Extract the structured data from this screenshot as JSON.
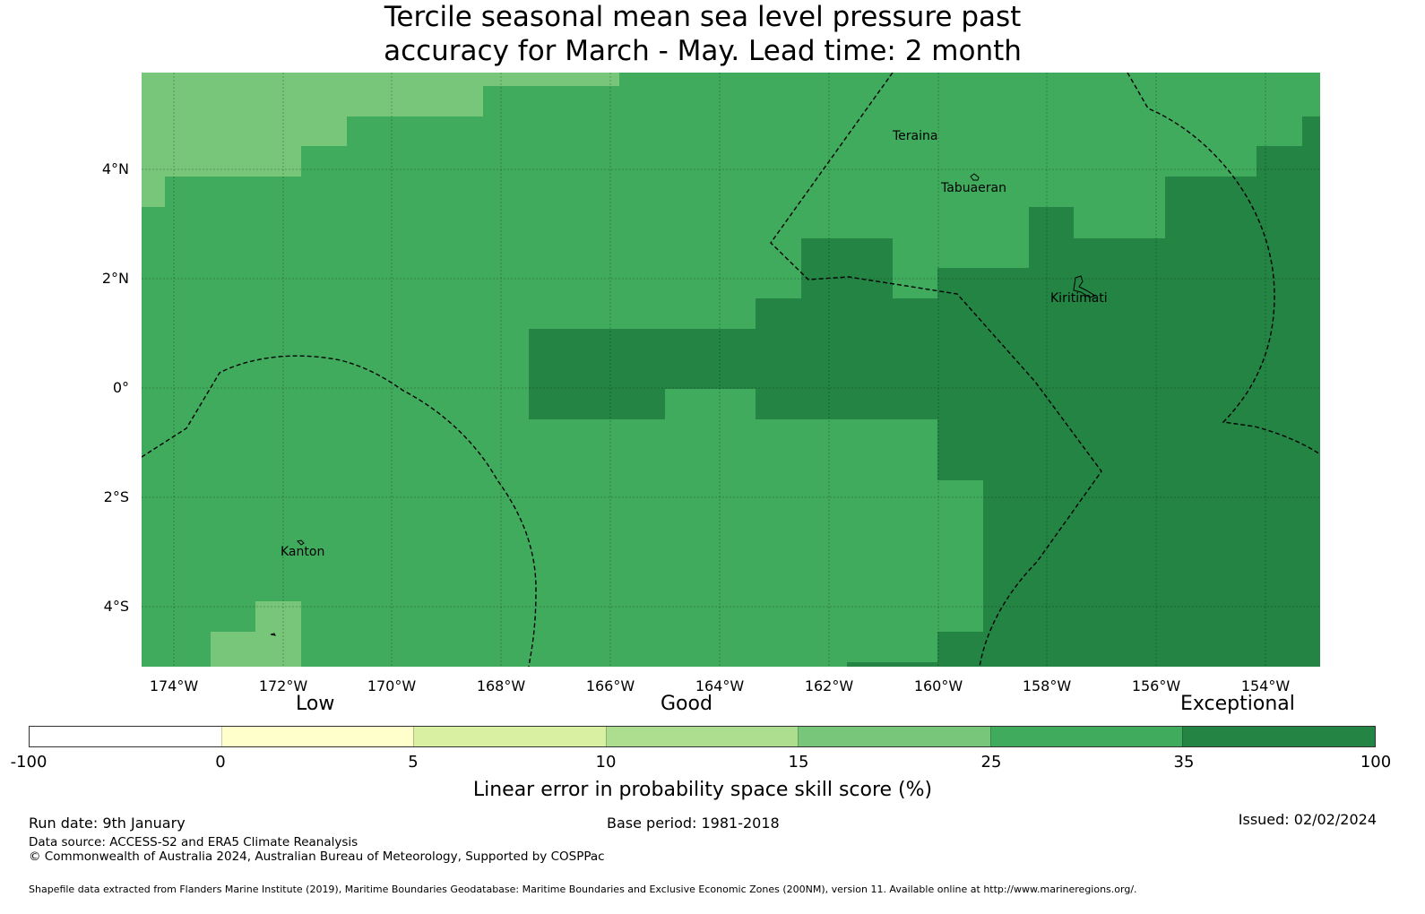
{
  "title_line1": "Tercile seasonal mean sea level pressure past",
  "title_line2": "accuracy for March - May. Lead time: 2 month",
  "map": {
    "lat_ticks": [
      "4°N",
      "2°N",
      "0°",
      "2°S",
      "4°S"
    ],
    "lon_ticks": [
      "174°W",
      "172°W",
      "170°W",
      "168°W",
      "166°W",
      "164°W",
      "162°W",
      "160°W",
      "158°W",
      "156°W",
      "154°W"
    ],
    "places": [
      "Teraina",
      "Tabuaeran",
      "Kiritimati",
      "Kanton"
    ]
  },
  "colorbar": {
    "categories": [
      "Low",
      "Good",
      "Exceptional"
    ],
    "ticks": [
      "-100",
      "0",
      "5",
      "10",
      "15",
      "25",
      "35",
      "100"
    ],
    "colors": [
      "#ffffff",
      "#ffffcc",
      "#d9f0a3",
      "#addd8e",
      "#78c679",
      "#41ab5d",
      "#238443"
    ],
    "label": "Linear error in probability space skill score (%)"
  },
  "footer": {
    "run_date": "Run date: 9th January",
    "base_period": "Base period: 1981-2018",
    "issued": "Issued: 02/02/2024",
    "data_source": "Data source: ACCESS-S2 and ERA5 Climate Reanalysis",
    "copyright": "© Commonwealth of Australia 2024, Australian Bureau of Meteorology, Supported by COSPPac",
    "shapefile": "Shapefile data extracted from Flanders Marine Institute (2019), Maritime Boundaries Geodatabase: Maritime Boundaries and Exclusive Economic Zones (200NM), version 11. Available online at http://www.marineregions.org/."
  }
}
